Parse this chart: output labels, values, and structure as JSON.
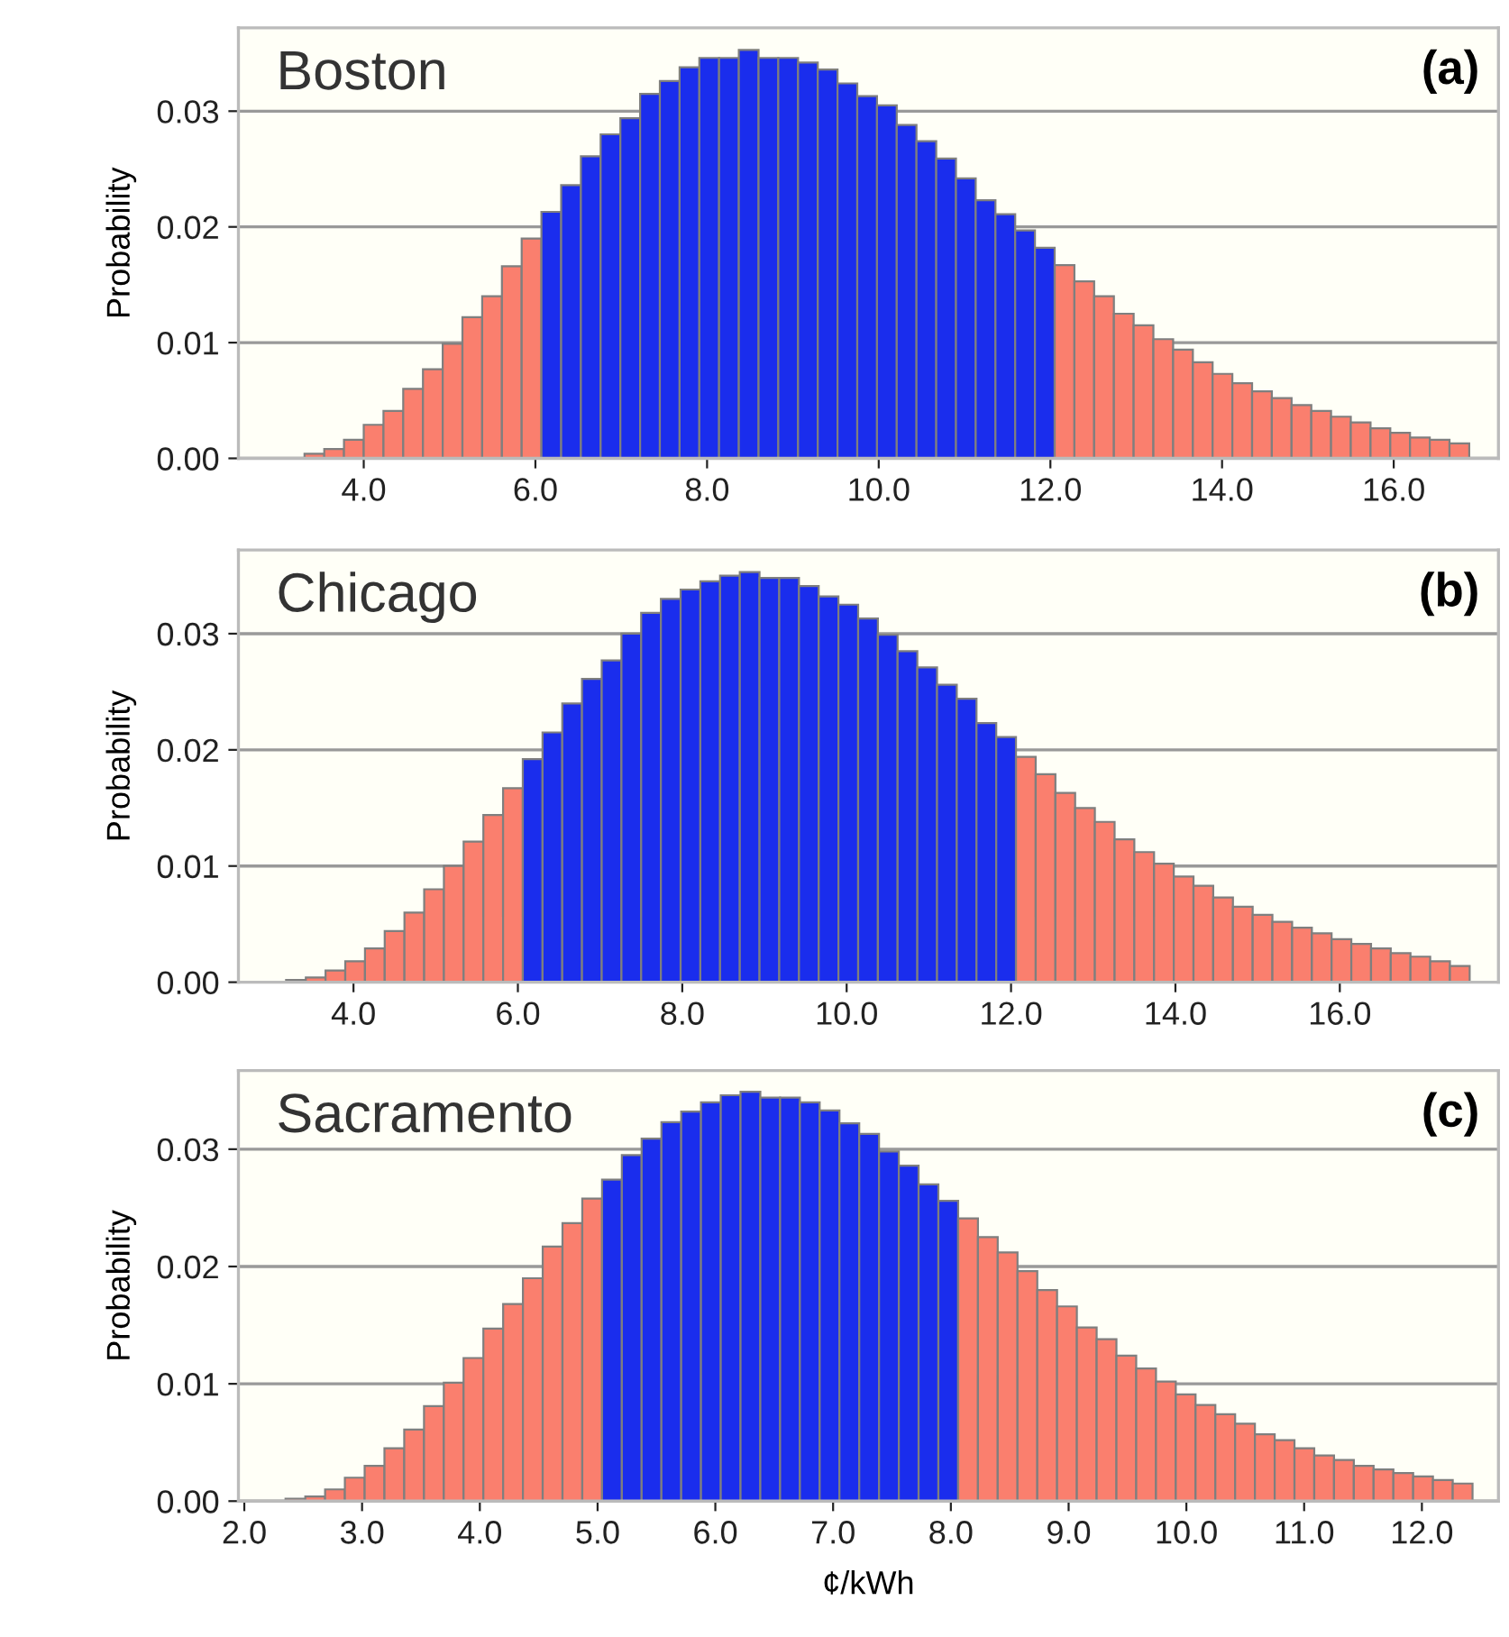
{
  "chart_data": [
    {
      "type": "histogram",
      "title": "Boston",
      "ylabel": "Probability",
      "annotations": [
        "(a)"
      ],
      "grid": "y",
      "bins": [
        3.31,
        3.54,
        3.77,
        4.0,
        4.23,
        4.46,
        4.69,
        4.92,
        5.15,
        5.38,
        5.61,
        5.84,
        6.07,
        6.3,
        6.53,
        6.76,
        6.99,
        7.22,
        7.45,
        7.68,
        7.91,
        8.14,
        8.37,
        8.6,
        8.83,
        9.06,
        9.29,
        9.52,
        9.75,
        9.98,
        10.21,
        10.44,
        10.67,
        10.9,
        11.13,
        11.36,
        11.59,
        11.82,
        12.05,
        12.28,
        12.51,
        12.74,
        12.97,
        13.2,
        13.43,
        13.66,
        13.89,
        14.12,
        14.35,
        14.58,
        14.81,
        15.04,
        15.27,
        15.5,
        15.73,
        15.96,
        16.19,
        16.42,
        16.65,
        16.88
      ],
      "values": [
        0.0004,
        0.0008,
        0.0016,
        0.0029,
        0.0041,
        0.006,
        0.0077,
        0.0099,
        0.0122,
        0.014,
        0.0166,
        0.019,
        0.0213,
        0.0236,
        0.0261,
        0.028,
        0.0294,
        0.0315,
        0.0326,
        0.0338,
        0.0346,
        0.0346,
        0.0353,
        0.0346,
        0.0346,
        0.0342,
        0.0336,
        0.0324,
        0.0313,
        0.0305,
        0.0288,
        0.0274,
        0.0259,
        0.0242,
        0.0223,
        0.0211,
        0.0197,
        0.0182,
        0.0167,
        0.0153,
        0.014,
        0.0125,
        0.0115,
        0.0103,
        0.0094,
        0.0083,
        0.0073,
        0.0065,
        0.0058,
        0.0052,
        0.0046,
        0.0041,
        0.0036,
        0.0031,
        0.0026,
        0.0022,
        0.0018,
        0.0016,
        0.0013
      ],
      "colors": [
        "#fa7f6e",
        "#fa7f6e",
        "#fa7f6e",
        "#fa7f6e",
        "#fa7f6e",
        "#fa7f6e",
        "#fa7f6e",
        "#fa7f6e",
        "#fa7f6e",
        "#fa7f6e",
        "#fa7f6e",
        "#fa7f6e",
        "#1a2ded",
        "#1a2ded",
        "#1a2ded",
        "#1a2ded",
        "#1a2ded",
        "#1a2ded",
        "#1a2ded",
        "#1a2ded",
        "#1a2ded",
        "#1a2ded",
        "#1a2ded",
        "#1a2ded",
        "#1a2ded",
        "#1a2ded",
        "#1a2ded",
        "#1a2ded",
        "#1a2ded",
        "#1a2ded",
        "#1a2ded",
        "#1a2ded",
        "#1a2ded",
        "#1a2ded",
        "#1a2ded",
        "#1a2ded",
        "#1a2ded",
        "#1a2ded",
        "#fa7f6e",
        "#fa7f6e",
        "#fa7f6e",
        "#fa7f6e",
        "#fa7f6e",
        "#fa7f6e",
        "#fa7f6e",
        "#fa7f6e",
        "#fa7f6e",
        "#fa7f6e",
        "#fa7f6e",
        "#fa7f6e",
        "#fa7f6e",
        "#fa7f6e",
        "#fa7f6e",
        "#fa7f6e",
        "#fa7f6e",
        "#fa7f6e",
        "#fa7f6e",
        "#fa7f6e",
        "#fa7f6e"
      ],
      "xlim": [
        2.54,
        17.22
      ],
      "ylim": [
        0,
        0.0372
      ],
      "xticks": [
        {
          "value": 4,
          "label": "4.0"
        },
        {
          "value": 6,
          "label": "6.0"
        },
        {
          "value": 8,
          "label": "8.0"
        },
        {
          "value": 10,
          "label": "10.0"
        },
        {
          "value": 12,
          "label": "12.0"
        },
        {
          "value": 14,
          "label": "14.0"
        },
        {
          "value": 16,
          "label": "16.0"
        }
      ],
      "yticks": [
        {
          "value": 0,
          "label": "0.00"
        },
        {
          "value": 0.01,
          "label": "0.01"
        },
        {
          "value": 0.02,
          "label": "0.02"
        },
        {
          "value": 0.03,
          "label": "0.03"
        }
      ]
    },
    {
      "type": "histogram",
      "title": "Chicago",
      "ylabel": "Probability",
      "annotations": [
        "(b)"
      ],
      "grid": "y",
      "bins": [
        3.18,
        3.42,
        3.66,
        3.9,
        4.14,
        4.38,
        4.62,
        4.86,
        5.1,
        5.34,
        5.58,
        5.82,
        6.06,
        6.3,
        6.54,
        6.78,
        7.02,
        7.26,
        7.5,
        7.74,
        7.98,
        8.22,
        8.46,
        8.7,
        8.94,
        9.18,
        9.42,
        9.66,
        9.9,
        10.14,
        10.38,
        10.62,
        10.86,
        11.1,
        11.34,
        11.58,
        11.82,
        12.06,
        12.3,
        12.54,
        12.78,
        13.02,
        13.26,
        13.5,
        13.74,
        13.98,
        14.22,
        14.46,
        14.7,
        14.94,
        15.18,
        15.42,
        15.66,
        15.9,
        16.14,
        16.38,
        16.62,
        16.86,
        17.1,
        17.34,
        17.58
      ],
      "values": [
        0.0002,
        0.0004,
        0.001,
        0.0018,
        0.0029,
        0.0044,
        0.006,
        0.008,
        0.01,
        0.0121,
        0.0144,
        0.0167,
        0.0192,
        0.0215,
        0.024,
        0.0261,
        0.0277,
        0.03,
        0.0318,
        0.033,
        0.0338,
        0.0345,
        0.035,
        0.0353,
        0.0348,
        0.0348,
        0.0341,
        0.0332,
        0.0325,
        0.0313,
        0.0299,
        0.0285,
        0.0271,
        0.0256,
        0.0244,
        0.0223,
        0.0211,
        0.0194,
        0.0179,
        0.0163,
        0.015,
        0.0138,
        0.0123,
        0.0112,
        0.0102,
        0.0091,
        0.0083,
        0.0073,
        0.0065,
        0.0058,
        0.0052,
        0.0047,
        0.0042,
        0.0037,
        0.0033,
        0.0029,
        0.0025,
        0.0022,
        0.0018,
        0.0014
      ],
      "colors": [
        "#fa7f6e",
        "#fa7f6e",
        "#fa7f6e",
        "#fa7f6e",
        "#fa7f6e",
        "#fa7f6e",
        "#fa7f6e",
        "#fa7f6e",
        "#fa7f6e",
        "#fa7f6e",
        "#fa7f6e",
        "#fa7f6e",
        "#1a2ded",
        "#1a2ded",
        "#1a2ded",
        "#1a2ded",
        "#1a2ded",
        "#1a2ded",
        "#1a2ded",
        "#1a2ded",
        "#1a2ded",
        "#1a2ded",
        "#1a2ded",
        "#1a2ded",
        "#1a2ded",
        "#1a2ded",
        "#1a2ded",
        "#1a2ded",
        "#1a2ded",
        "#1a2ded",
        "#1a2ded",
        "#1a2ded",
        "#1a2ded",
        "#1a2ded",
        "#1a2ded",
        "#1a2ded",
        "#1a2ded",
        "#fa7f6e",
        "#fa7f6e",
        "#fa7f6e",
        "#fa7f6e",
        "#fa7f6e",
        "#fa7f6e",
        "#fa7f6e",
        "#fa7f6e",
        "#fa7f6e",
        "#fa7f6e",
        "#fa7f6e",
        "#fa7f6e",
        "#fa7f6e",
        "#fa7f6e",
        "#fa7f6e",
        "#fa7f6e",
        "#fa7f6e",
        "#fa7f6e",
        "#fa7f6e",
        "#fa7f6e",
        "#fa7f6e",
        "#fa7f6e",
        "#fa7f6e"
      ],
      "xlim": [
        2.6,
        17.93
      ],
      "ylim": [
        0,
        0.0372
      ],
      "xticks": [
        {
          "value": 4,
          "label": "4.0"
        },
        {
          "value": 6,
          "label": "6.0"
        },
        {
          "value": 8,
          "label": "8.0"
        },
        {
          "value": 10,
          "label": "10.0"
        },
        {
          "value": 12,
          "label": "12.0"
        },
        {
          "value": 14,
          "label": "14.0"
        },
        {
          "value": 16,
          "label": "16.0"
        }
      ],
      "yticks": [
        {
          "value": 0,
          "label": "0.00"
        },
        {
          "value": 0.01,
          "label": "0.01"
        },
        {
          "value": 0.02,
          "label": "0.02"
        },
        {
          "value": 0.03,
          "label": "0.03"
        }
      ]
    },
    {
      "type": "histogram",
      "title": "Sacramento",
      "ylabel": "Probability",
      "xlabel": "¢/kWh",
      "annotations": [
        "(c)"
      ],
      "grid": "y",
      "bins": [
        2.35,
        2.518,
        2.686,
        2.854,
        3.022,
        3.19,
        3.358,
        3.526,
        3.694,
        3.862,
        4.03,
        4.198,
        4.366,
        4.534,
        4.702,
        4.87,
        5.038,
        5.206,
        5.374,
        5.542,
        5.71,
        5.878,
        6.046,
        6.214,
        6.382,
        6.55,
        6.718,
        6.886,
        7.054,
        7.222,
        7.39,
        7.558,
        7.726,
        7.894,
        8.062,
        8.23,
        8.398,
        8.566,
        8.734,
        8.902,
        9.07,
        9.238,
        9.406,
        9.574,
        9.742,
        9.91,
        10.078,
        10.246,
        10.414,
        10.582,
        10.75,
        10.918,
        11.086,
        11.254,
        11.422,
        11.59,
        11.758,
        11.926,
        12.094,
        12.262,
        12.43
      ],
      "values": [
        0.0002,
        0.0004,
        0.001,
        0.002,
        0.003,
        0.0045,
        0.0061,
        0.0081,
        0.0101,
        0.0122,
        0.0147,
        0.0168,
        0.019,
        0.0217,
        0.0237,
        0.0258,
        0.0274,
        0.0295,
        0.0309,
        0.0323,
        0.0332,
        0.034,
        0.0346,
        0.0349,
        0.0344,
        0.0344,
        0.034,
        0.0333,
        0.0322,
        0.0313,
        0.0298,
        0.0286,
        0.027,
        0.0256,
        0.0241,
        0.0225,
        0.0212,
        0.0196,
        0.018,
        0.0166,
        0.0148,
        0.0138,
        0.0124,
        0.0113,
        0.0102,
        0.0091,
        0.0082,
        0.0074,
        0.0066,
        0.0057,
        0.0052,
        0.0045,
        0.0039,
        0.0035,
        0.003,
        0.0027,
        0.0024,
        0.0021,
        0.0018,
        0.0015
      ],
      "colors": [
        "#fa7f6e",
        "#fa7f6e",
        "#fa7f6e",
        "#fa7f6e",
        "#fa7f6e",
        "#fa7f6e",
        "#fa7f6e",
        "#fa7f6e",
        "#fa7f6e",
        "#fa7f6e",
        "#fa7f6e",
        "#fa7f6e",
        "#fa7f6e",
        "#fa7f6e",
        "#fa7f6e",
        "#fa7f6e",
        "#1a2ded",
        "#1a2ded",
        "#1a2ded",
        "#1a2ded",
        "#1a2ded",
        "#1a2ded",
        "#1a2ded",
        "#1a2ded",
        "#1a2ded",
        "#1a2ded",
        "#1a2ded",
        "#1a2ded",
        "#1a2ded",
        "#1a2ded",
        "#1a2ded",
        "#1a2ded",
        "#1a2ded",
        "#1a2ded",
        "#fa7f6e",
        "#fa7f6e",
        "#fa7f6e",
        "#fa7f6e",
        "#fa7f6e",
        "#fa7f6e",
        "#fa7f6e",
        "#fa7f6e",
        "#fa7f6e",
        "#fa7f6e",
        "#fa7f6e",
        "#fa7f6e",
        "#fa7f6e",
        "#fa7f6e",
        "#fa7f6e",
        "#fa7f6e",
        "#fa7f6e",
        "#fa7f6e",
        "#fa7f6e",
        "#fa7f6e",
        "#fa7f6e",
        "#fa7f6e",
        "#fa7f6e",
        "#fa7f6e",
        "#fa7f6e",
        "#fa7f6e"
      ],
      "xlim": [
        1.95,
        12.65
      ],
      "ylim": [
        0,
        0.0367
      ],
      "xticks": [
        {
          "value": 2,
          "label": "2.0"
        },
        {
          "value": 3,
          "label": "3.0"
        },
        {
          "value": 4,
          "label": "4.0"
        },
        {
          "value": 5,
          "label": "5.0"
        },
        {
          "value": 6,
          "label": "6.0"
        },
        {
          "value": 7,
          "label": "7.0"
        },
        {
          "value": 8,
          "label": "8.0"
        },
        {
          "value": 9,
          "label": "9.0"
        },
        {
          "value": 10,
          "label": "10.0"
        },
        {
          "value": 11,
          "label": "11.0"
        },
        {
          "value": 12,
          "label": "12.0"
        }
      ],
      "yticks": [
        {
          "value": 0,
          "label": "0.00"
        },
        {
          "value": 0.01,
          "label": "0.01"
        },
        {
          "value": 0.02,
          "label": "0.02"
        },
        {
          "value": 0.03,
          "label": "0.03"
        }
      ]
    }
  ]
}
